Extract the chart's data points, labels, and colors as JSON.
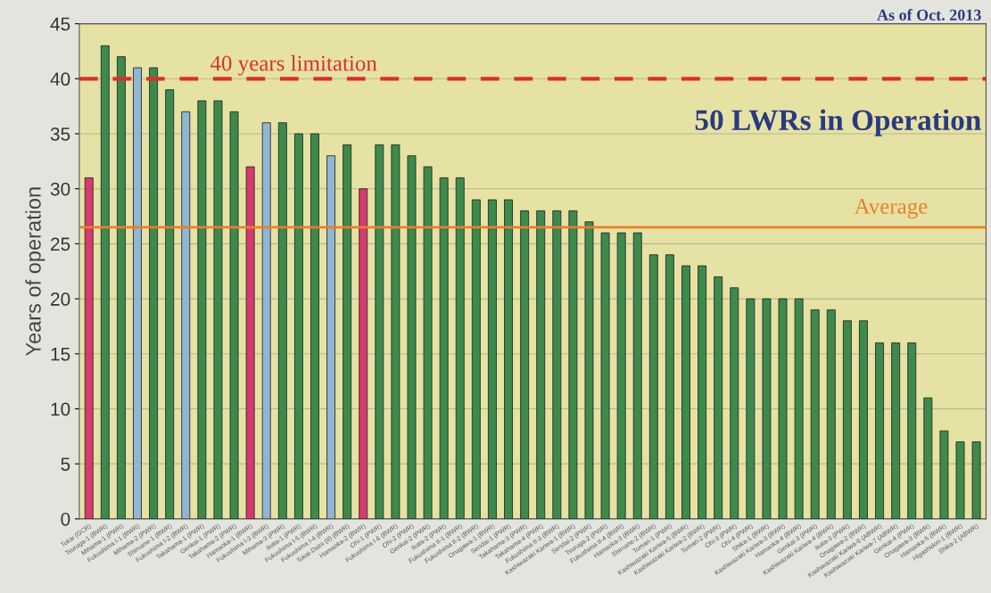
{
  "chart_data": {
    "type": "bar",
    "ylabel": "Years of operation",
    "categories": [
      "Tokai (GCR)",
      "Tsuruga-1 (BWR)",
      "Mihama-1 (PWR)",
      "Fukushima I-1 (BWR)",
      "Mihama-2 (PWR)",
      "Shimane-1 (BWR)",
      "Fukushima I-2 (BWR)",
      "Takahama-1 (PWR)",
      "Genkai-1 (PWR)",
      "Takahama-2 (PWR)",
      "Hamaoka-1 (BWR)",
      "Fukushima I-3 (BWR)",
      "Mihama-3 (PWR)",
      "Ikata-1 (PWR)",
      "Fukushima I-5 (BWR)",
      "Fukushima I-4 (BWR)",
      "Tokai-Daini (II) (BWR)",
      "Hamaoka-2 (BWR)",
      "Ohi-1 (PWR)",
      "Fukushima I-6 (BWR)",
      "Ohi-2 (PWR)",
      "Genkai-2 (PWR)",
      "Ikata-2 (PWR)",
      "Fukushima II-1 (BWR)",
      "Fukushima II-2 (BWR)",
      "Onagawa-1 (BWR)",
      "Sendai-1 (PWR)",
      "Takahama-3 (PWR)",
      "Takahama-4 (PWR)",
      "Fukushima II-3 (BWR)",
      "Kashiwazaki Kariwa-1 (BWR)",
      "Sendai-2 (PWR)",
      "Tsuruga-2 (PWR)",
      "Fukushima II-4 (BWR)",
      "Hamaoka-3 (BWR)",
      "Shimane-2 (BWR)",
      "Tomari-1 (PWR)",
      "Kashiwazaki Kariwa-5 (BWR)",
      "Kashiwazaki Kariwa-2 (BWR)",
      "Tomari-2 (PWR)",
      "Ohi-3 (PWR)",
      "Ohi-4 (PWR)",
      "Shika-1 (BWR)",
      "Kashiwazaki Kariwa-3 (BWR)",
      "Hamaoka-4 (BWR)",
      "Genkai-3 (PWR)",
      "Kashiwazaki Kariwa-4 (BWR)",
      "Ikata-3 (PWR)",
      "Onagawa-2 (BWR)",
      "Kashiwazaki Kariwa-6 (ABWR)",
      "Kashiwazaki Kariwa-7 (ABWR)",
      "Genkai-4 (PWR)",
      "Onagawa-3 (BWR)",
      "Hamaoka-5 (BWR)",
      "Higashidori-1 (BWR)",
      "Shika-2 (ABWR)"
    ],
    "values": [
      31,
      43,
      42,
      41,
      41,
      39,
      37,
      38,
      38,
      37,
      32,
      36,
      36,
      35,
      35,
      33,
      34,
      30,
      34,
      34,
      33,
      32,
      31,
      31,
      29,
      29,
      29,
      28,
      28,
      28,
      28,
      27,
      26,
      26,
      26,
      24,
      24,
      23,
      23,
      22,
      21,
      20,
      20,
      20,
      20,
      19,
      19,
      18,
      18,
      16,
      16,
      16,
      11,
      8,
      7,
      7
    ],
    "colors": [
      "#d63a6e",
      "#3d8a4c",
      "#3d8a4c",
      "#8fb6d2",
      "#3d8a4c",
      "#3d8a4c",
      "#8fb6d2",
      "#3d8a4c",
      "#3d8a4c",
      "#3d8a4c",
      "#d63a6e",
      "#8fb6d2",
      "#3d8a4c",
      "#3d8a4c",
      "#3d8a4c",
      "#8fb6d2",
      "#3d8a4c",
      "#d63a6e",
      "#3d8a4c",
      "#3d8a4c",
      "#3d8a4c",
      "#3d8a4c",
      "#3d8a4c",
      "#3d8a4c",
      "#3d8a4c",
      "#3d8a4c",
      "#3d8a4c",
      "#3d8a4c",
      "#3d8a4c",
      "#3d8a4c",
      "#3d8a4c",
      "#3d8a4c",
      "#3d8a4c",
      "#3d8a4c",
      "#3d8a4c",
      "#3d8a4c",
      "#3d8a4c",
      "#3d8a4c",
      "#3d8a4c",
      "#3d8a4c",
      "#3d8a4c",
      "#3d8a4c",
      "#3d8a4c",
      "#3d8a4c",
      "#3d8a4c",
      "#3d8a4c",
      "#3d8a4c",
      "#3d8a4c",
      "#3d8a4c",
      "#3d8a4c",
      "#3d8a4c",
      "#3d8a4c",
      "#3d8a4c",
      "#3d8a4c",
      "#3d8a4c",
      "#3d8a4c"
    ],
    "ylim": [
      0,
      45
    ],
    "yticks": [
      0,
      5,
      10,
      15,
      20,
      25,
      30,
      35,
      40,
      45
    ],
    "grid": "y",
    "ref_lines": [
      {
        "axis": "y",
        "value": 40,
        "label": "40 years limitation",
        "color": "#d9302c",
        "line_style": "dashed"
      },
      {
        "axis": "y",
        "value": 26.5,
        "label": "Average",
        "color": "#e8802a",
        "line_style": "solid"
      }
    ],
    "annotations": [
      "50 LWRs in Operation",
      "As of Oct. 2013"
    ]
  }
}
